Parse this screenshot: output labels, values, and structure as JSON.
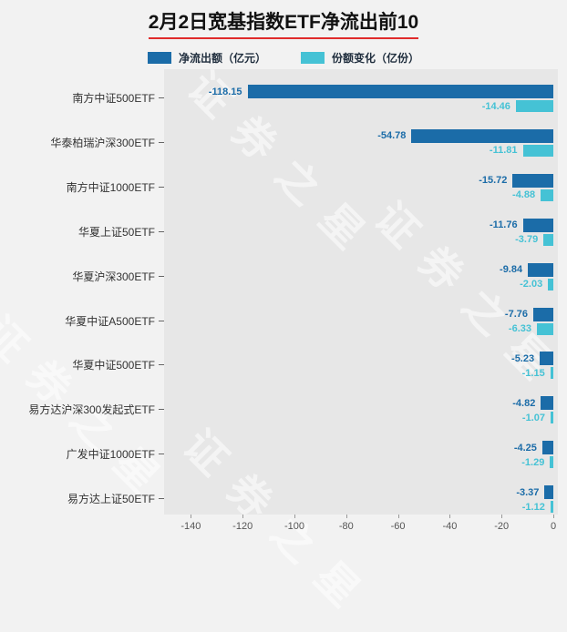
{
  "title": "2月2日宽基指数ETF净流出前10",
  "watermark": "证券之星",
  "legend": {
    "outflow": {
      "label": "净流出额（亿元）",
      "color": "#1b6ca8"
    },
    "share": {
      "label": "份额变化（亿份）",
      "color": "#45c2d5"
    }
  },
  "chart_data": {
    "type": "bar",
    "orientation": "horizontal",
    "title": "2月2日宽基指数ETF净流出前10",
    "categories": [
      "南方中证500ETF",
      "华泰柏瑞沪深300ETF",
      "南方中证1000ETF",
      "华夏上证50ETF",
      "华夏沪深300ETF",
      "华夏中证A500ETF",
      "华夏中证500ETF",
      "易方达沪深300发起式ETF",
      "广发中证1000ETF",
      "易方达上证50ETF"
    ],
    "series": [
      {
        "name": "净流出额（亿元）",
        "color": "#1b6ca8",
        "values": [
          -118.15,
          -54.78,
          -15.72,
          -11.76,
          -9.84,
          -7.76,
          -5.23,
          -4.82,
          -4.25,
          -3.37
        ]
      },
      {
        "name": "份额变化（亿份）",
        "color": "#45c2d5",
        "values": [
          -14.46,
          -11.81,
          -4.88,
          -3.79,
          -2.03,
          -6.33,
          -1.15,
          -1.07,
          -1.29,
          -1.12
        ]
      }
    ],
    "xticks": [
      -140,
      -120,
      -100,
      -80,
      -60,
      -40,
      -20,
      0
    ],
    "xlim": [
      -150,
      2
    ],
    "legend_position": "top",
    "grid": false
  }
}
